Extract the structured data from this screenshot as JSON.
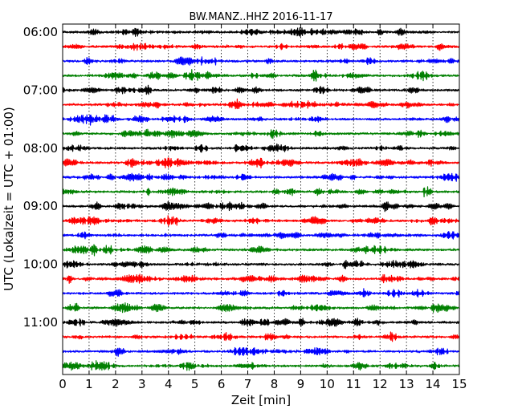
{
  "chart_data": {
    "type": "line",
    "title": "BW.MANZ..HHZ 2016-11-17",
    "xlabel": "Zeit  [min]",
    "ylabel": "UTC (Lokalzeit = UTC + 01:00)",
    "xlim": [
      0,
      15
    ],
    "x_ticks": [
      "0",
      "1",
      "2",
      "3",
      "4",
      "5",
      "6",
      "7",
      "8",
      "9",
      "10",
      "11",
      "12",
      "13",
      "14",
      "15"
    ],
    "y_ticks": [
      "06:00",
      "07:00",
      "08:00",
      "09:00",
      "10:00",
      "11:00"
    ],
    "trace_interval_minutes": 15,
    "trace_start": "06:00",
    "trace_count": 24,
    "trace_colors": [
      "#000000",
      "#ff0000",
      "#0000ff",
      "#008000"
    ],
    "grid": "vertical dotted lines at each minute"
  }
}
